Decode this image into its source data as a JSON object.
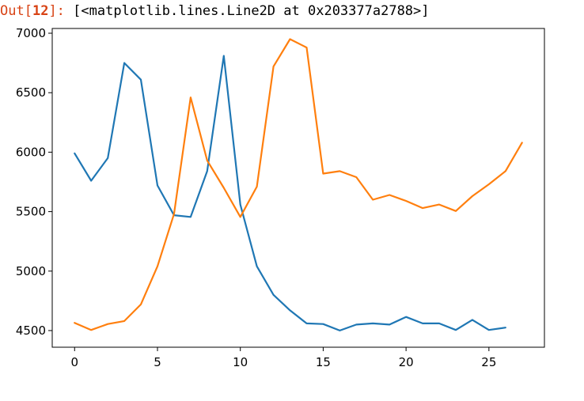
{
  "cell_output": {
    "prompt_prefix": "Out[",
    "prompt_number": "12",
    "prompt_suffix": "]:",
    "text": "[<matplotlib.lines.Line2D at 0x203377a2788>]"
  },
  "chart_data": {
    "type": "line",
    "title": "",
    "xlabel": "",
    "ylabel": "",
    "xlim": [
      -1.35,
      28.35
    ],
    "ylim": [
      4360,
      7040
    ],
    "xticks": [
      0,
      5,
      10,
      15,
      20,
      25
    ],
    "yticks": [
      4500,
      5000,
      5500,
      6000,
      6500,
      7000
    ],
    "grid": false,
    "series": [
      {
        "color": "#1f77b4",
        "x": [
          0,
          1,
          2,
          3,
          4,
          5,
          6,
          7,
          8,
          9,
          10,
          11,
          12,
          13,
          14,
          15,
          16,
          17,
          18,
          19,
          20,
          21,
          22,
          23,
          24,
          25,
          26
        ],
        "y": [
          5990,
          5760,
          5950,
          6750,
          6610,
          5720,
          5470,
          5455,
          5840,
          6810,
          5560,
          5040,
          4800,
          4670,
          4560,
          4555,
          4500,
          4550,
          4560,
          4550,
          4615,
          4560,
          4560,
          4505,
          4590,
          4505,
          4525
        ]
      },
      {
        "color": "#ff7f0e",
        "x": [
          0,
          1,
          2,
          3,
          4,
          5,
          6,
          7,
          8,
          9,
          10,
          11,
          12,
          13,
          14,
          15,
          16,
          17,
          18,
          19,
          20,
          21,
          22,
          23,
          24,
          25,
          26,
          27
        ],
        "y": [
          4565,
          4505,
          4555,
          4580,
          4720,
          5040,
          5480,
          6460,
          5930,
          5700,
          5455,
          5710,
          6720,
          6950,
          6880,
          5820,
          5840,
          5790,
          5600,
          5640,
          5590,
          5530,
          5560,
          5505,
          5630,
          5730,
          5840,
          6080
        ]
      }
    ]
  }
}
